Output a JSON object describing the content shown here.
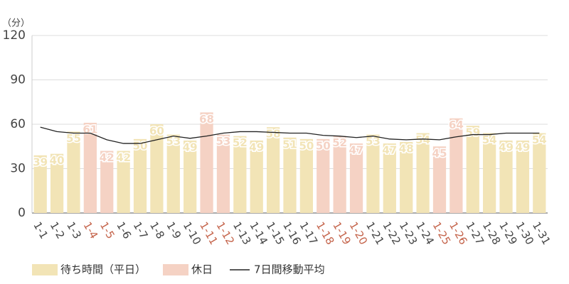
{
  "chart_data": {
    "type": "bar",
    "y_unit": "（分）",
    "categories": [
      "1-1",
      "1-2",
      "1-3",
      "1-4",
      "1-5",
      "1-6",
      "1-7",
      "1-8",
      "1-9",
      "1-10",
      "1-11",
      "1-12",
      "1-13",
      "1-14",
      "1-15",
      "1-16",
      "1-17",
      "1-18",
      "1-19",
      "1-20",
      "1-21",
      "1-22",
      "1-23",
      "1-24",
      "1-25",
      "1-26",
      "1-27",
      "1-28",
      "1-29",
      "1-30",
      "1-31"
    ],
    "series": [
      {
        "name": "待ち時間（平日）",
        "color": "#f2e4b6",
        "values": [
          39,
          40,
          55,
          null,
          null,
          42,
          50,
          60,
          53,
          49,
          null,
          null,
          52,
          49,
          58,
          51,
          50,
          null,
          null,
          null,
          53,
          47,
          48,
          54,
          null,
          null,
          59,
          54,
          49,
          49,
          54
        ]
      },
      {
        "name": "休日",
        "color": "#f5d2c4",
        "values": [
          null,
          null,
          null,
          61,
          42,
          null,
          null,
          null,
          null,
          null,
          68,
          53,
          null,
          null,
          null,
          null,
          null,
          50,
          52,
          47,
          null,
          null,
          null,
          null,
          45,
          64,
          null,
          null,
          null,
          null,
          null
        ]
      },
      {
        "name": "7日間移動平均",
        "type": "line",
        "color": "#222222",
        "values": [
          58,
          55,
          54,
          54,
          49.5,
          47,
          47,
          49.5,
          52,
          50.5,
          52,
          54,
          55,
          55,
          54.5,
          54,
          54,
          52.5,
          52,
          51,
          52,
          50,
          49.5,
          50,
          49.5,
          51.5,
          53,
          53,
          54,
          54,
          54
        ]
      }
    ],
    "category_label_color": "#444444",
    "holiday_label_color": "#c4634a",
    "ylim": [
      0,
      120
    ],
    "yticks": [
      0,
      30,
      60,
      90,
      120
    ],
    "grid": true
  }
}
